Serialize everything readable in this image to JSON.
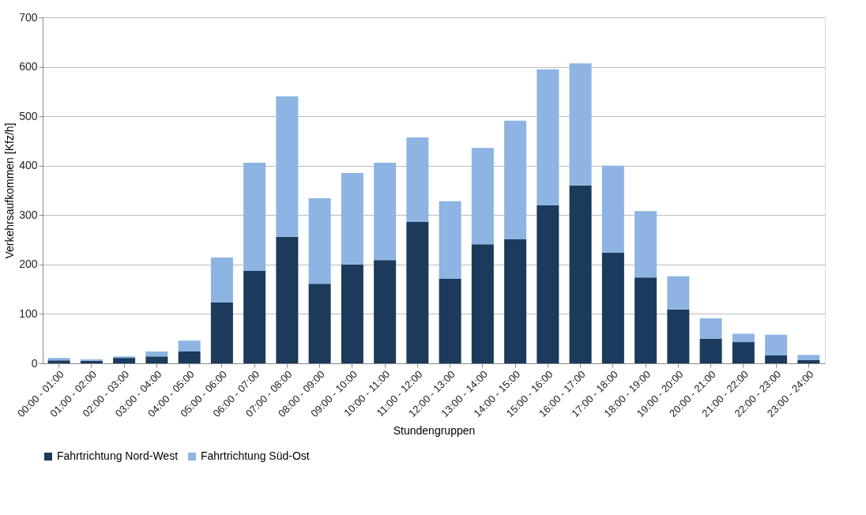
{
  "chart_data": {
    "type": "bar",
    "stacked": true,
    "xlabel": "Stundengruppen",
    "ylabel": "Verkehrsaufkommen [Kfz/h]",
    "categories": [
      "00:00 - 01:00",
      "01:00 - 02:00",
      "02:00 - 03:00",
      "03:00 - 04:00",
      "04:00 - 05:00",
      "05:00 - 06:00",
      "06:00 - 07:00",
      "07:00 - 08:00",
      "08:00 - 09:00",
      "09:00 - 10:00",
      "10:00 - 11:00",
      "11:00 - 12:00",
      "12:00 - 13:00",
      "13:00 - 14:00",
      "14:00 - 15:00",
      "15:00 - 16:00",
      "16:00 - 17:00",
      "17:00 - 18:00",
      "18:00 - 19:00",
      "19:00 - 20:00",
      "20:00 - 21:00",
      "21:00 - 22:00",
      "22:00 - 23:00",
      "23:00 - 24:00"
    ],
    "series": [
      {
        "name": "Fahrtrichtung Nord-West",
        "color": "#1b3a5c",
        "values": [
          6,
          5,
          11,
          14,
          24,
          123,
          187,
          256,
          161,
          200,
          209,
          286,
          171,
          241,
          251,
          320,
          360,
          224,
          174,
          109,
          50,
          43,
          16,
          7
        ]
      },
      {
        "name": "Fahrtrichtung Süd-Ost",
        "color": "#8db4e2",
        "values": [
          5,
          3,
          3,
          10,
          22,
          91,
          219,
          284,
          173,
          185,
          197,
          171,
          157,
          195,
          240,
          275,
          247,
          176,
          134,
          67,
          41,
          17,
          42,
          10
        ]
      }
    ],
    "ylim": [
      0,
      700
    ],
    "yticks": [
      0,
      100,
      200,
      300,
      400,
      500,
      600,
      700
    ],
    "grid": "y",
    "legend": "bottom"
  }
}
